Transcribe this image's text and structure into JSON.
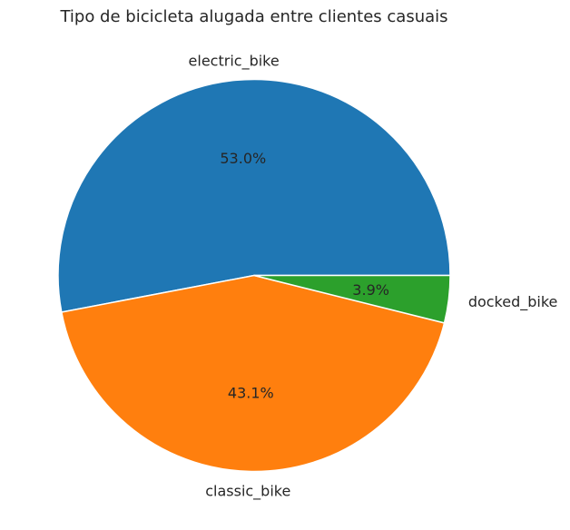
{
  "chart_data": {
    "type": "pie",
    "title": "Tipo de bicicleta alugada entre clientes casuais",
    "categories": [
      "electric_bike",
      "classic_bike",
      "docked_bike"
    ],
    "values": [
      53.0,
      43.1,
      3.9
    ],
    "percent_labels": [
      "53.0%",
      "43.1%",
      "3.9%"
    ],
    "colors": [
      "#1f77b4",
      "#ff7f0e",
      "#2ca02c"
    ],
    "start_angle_deg": 0,
    "direction": "counterclockwise",
    "legend": "none"
  }
}
